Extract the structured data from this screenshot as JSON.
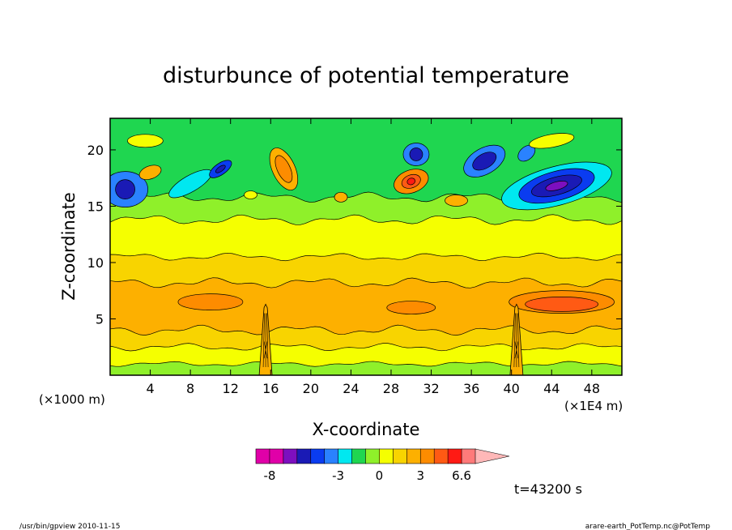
{
  "chart_data": {
    "type": "heatmap",
    "title": "disturbunce of potential temperature",
    "xlabel": "X-coordinate",
    "ylabel": "Z-coordinate",
    "x_unit_left": "(×1000 m)",
    "x_unit_right": "(×1E4 m)",
    "xlim": [
      0,
      51
    ],
    "ylim": [
      0,
      22.8
    ],
    "x_ticks": [
      4,
      8,
      12,
      16,
      20,
      24,
      28,
      32,
      36,
      40,
      44,
      48
    ],
    "y_ticks": [
      5,
      10,
      15,
      20
    ],
    "time_label": "t=43200 s",
    "colorbar": {
      "levels": [
        -8,
        -7,
        -6,
        -5,
        -4,
        -3,
        -2,
        -1,
        0,
        1,
        2,
        3,
        4,
        5,
        6.6
      ],
      "tick_labels": [
        "-8",
        "-3",
        "0",
        "3",
        "6.6"
      ],
      "tick_values": [
        -8,
        -3,
        0,
        3,
        6.6
      ],
      "colors": [
        "#e000a8",
        "#e000a8",
        "#7d0fbf",
        "#1a1ab5",
        "#0a3cf0",
        "#2a82ff",
        "#00e8f0",
        "#1fd650",
        "#8ff02a",
        "#f5ff00",
        "#f8d400",
        "#fdb000",
        "#fd8c00",
        "#ff5a14",
        "#ff1a14",
        "#ff7a7a",
        "#ffb8b8"
      ]
    }
  },
  "footer": {
    "left": "/usr/bin/gpview   2010-11-15",
    "right": "arare-earth_PotTemp.nc@PotTemp"
  },
  "colors": {
    "axis": "#000000",
    "background": "#ffffff"
  }
}
